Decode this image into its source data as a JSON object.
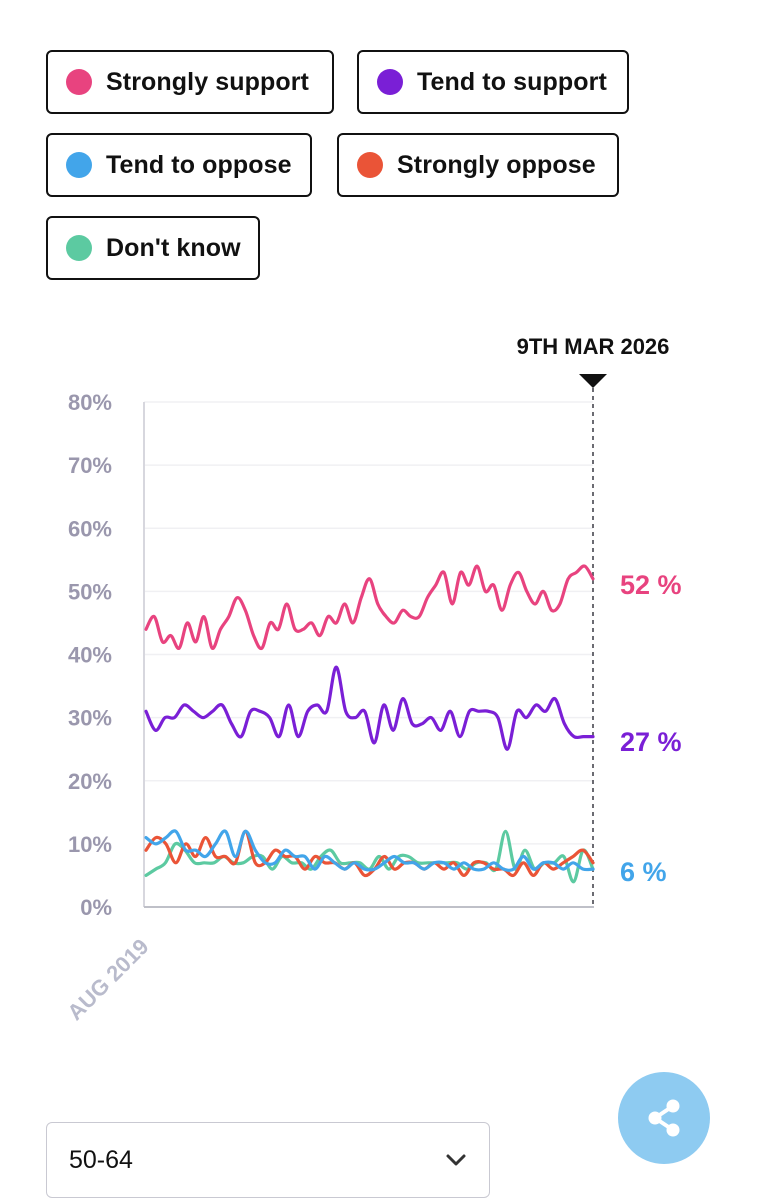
{
  "legend": [
    {
      "label": "Strongly support",
      "color": "#e8437f"
    },
    {
      "label": "Tend to support",
      "color": "#7a1fd6"
    },
    {
      "label": "Tend to oppose",
      "color": "#42a5ea"
    },
    {
      "label": "Strongly oppose",
      "color": "#ea5437"
    },
    {
      "label": "Don't know",
      "color": "#5ccaa1"
    }
  ],
  "chart_data": {
    "type": "line",
    "title": "",
    "xlabel": "",
    "ylabel": "",
    "ylim": [
      0,
      80
    ],
    "y_ticks": [
      "80%",
      "70%",
      "60%",
      "50%",
      "40%",
      "30%",
      "20%",
      "10%",
      "0%"
    ],
    "x_tick_label": "AUG 2019",
    "current_date_label": "9TH MAR 2026",
    "series": [
      {
        "name": "Strongly support",
        "color": "#e8437f",
        "end_label": "52 %",
        "values": [
          44,
          46,
          42,
          43,
          41,
          45,
          42,
          46,
          41,
          44,
          46,
          49,
          47,
          43,
          41,
          45,
          44,
          48,
          44,
          44,
          45,
          43,
          46,
          45,
          48,
          45,
          49,
          52,
          48,
          46,
          45,
          47,
          46,
          46,
          49,
          51,
          53,
          48,
          53,
          51,
          54,
          50,
          51,
          47,
          51,
          53,
          50,
          48,
          50,
          47,
          48,
          52,
          53,
          54,
          52
        ]
      },
      {
        "name": "Tend to support",
        "color": "#7a1fd6",
        "end_label": "27 %",
        "values": [
          31,
          28,
          30,
          30,
          32,
          31,
          30,
          31,
          32,
          29,
          27,
          31,
          31,
          30,
          27,
          32,
          27,
          31,
          32,
          31,
          38,
          31,
          30,
          31,
          26,
          32,
          28,
          33,
          29,
          29,
          30,
          28,
          31,
          27,
          31,
          31,
          31,
          30,
          25,
          31,
          30,
          32,
          31,
          33,
          29,
          27,
          27,
          27
        ]
      },
      {
        "name": "Tend to oppose",
        "color": "#42a5ea",
        "end_label": "6 %",
        "values": [
          11,
          10,
          11,
          12,
          9,
          9,
          8,
          10,
          12,
          8,
          12,
          9,
          7,
          7,
          9,
          8,
          8,
          6,
          8,
          7,
          6,
          7,
          6,
          6,
          7,
          8,
          7,
          7,
          6,
          7,
          7,
          6,
          7,
          6,
          6,
          7,
          6,
          6,
          8,
          6,
          7,
          7,
          6,
          7,
          6,
          6
        ]
      },
      {
        "name": "Strongly oppose",
        "color": "#ea5437",
        "end_label": "",
        "values": [
          9,
          11,
          10,
          7,
          10,
          8,
          11,
          8,
          8,
          7,
          12,
          7,
          7,
          9,
          8,
          8,
          6,
          8,
          7,
          7,
          6,
          7,
          5,
          6,
          8,
          6,
          7,
          7,
          6,
          7,
          6,
          7,
          5,
          7,
          7,
          6,
          6,
          5,
          7,
          5,
          7,
          6,
          7,
          8,
          9,
          7
        ]
      },
      {
        "name": "Don't know",
        "color": "#5ccaa1",
        "end_label": "",
        "values": [
          5,
          6,
          7,
          10,
          9,
          7,
          7,
          7,
          8,
          7,
          7,
          8,
          8,
          6,
          8,
          7,
          7,
          6,
          8,
          9,
          7,
          7,
          7,
          6,
          8,
          6,
          8,
          8,
          7,
          7,
          7,
          7,
          7,
          6,
          7,
          7,
          6,
          12,
          6,
          9,
          6,
          7,
          7,
          8,
          4,
          9,
          6
        ]
      }
    ]
  },
  "filter": {
    "selected": "50-64"
  },
  "share": {
    "icon": "share-icon"
  }
}
